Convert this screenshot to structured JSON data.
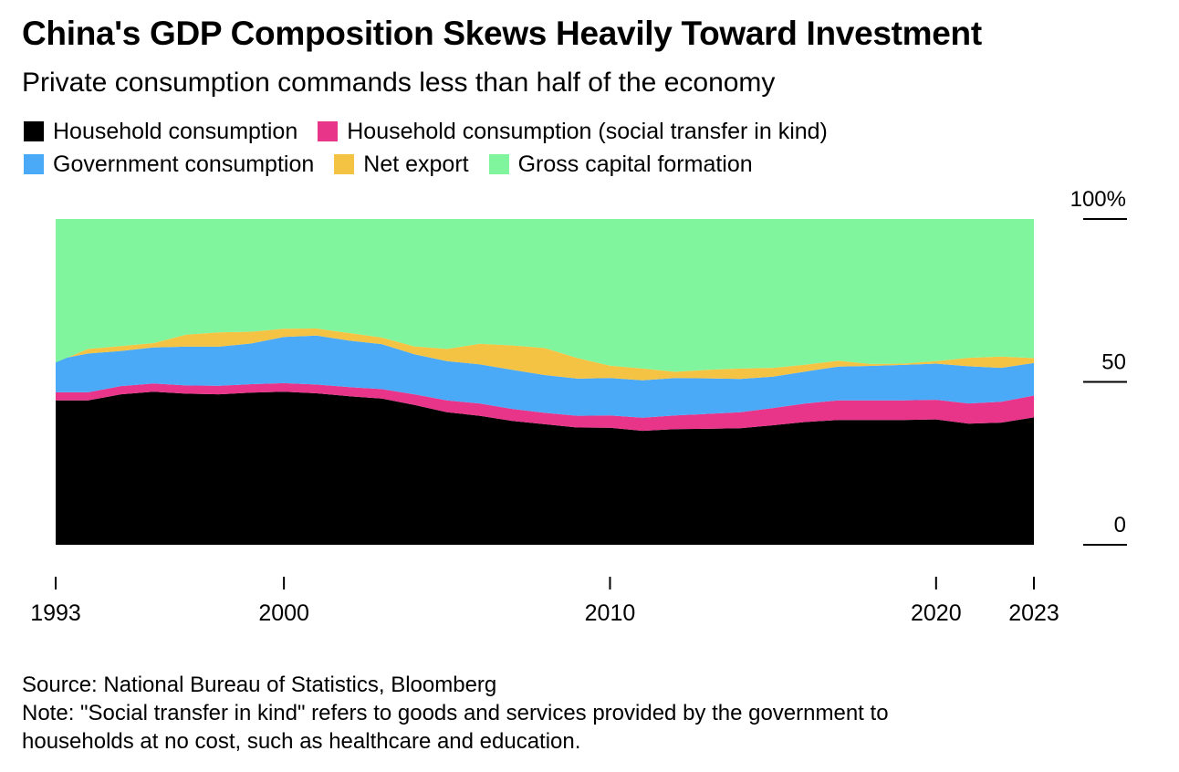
{
  "title": "China's GDP Composition Skews Heavily Toward Investment",
  "subtitle": "Private consumption commands less than half of the economy",
  "source": "Source: National Bureau of Statistics, Bloomberg",
  "note_line1": "Note: \"Social transfer in kind\" refers to goods and services provided by the government to",
  "note_line2": "households at no cost, such as healthcare and education.",
  "legend": [
    {
      "label": "Household consumption",
      "color": "#000000"
    },
    {
      "label": "Household consumption (social transfer in kind)",
      "color": "#e8358a"
    },
    {
      "label": "Government consumption",
      "color": "#4aaaf8"
    },
    {
      "label": "Net export",
      "color": "#f5c343"
    },
    {
      "label": "Gross capital formation",
      "color": "#80f59d"
    }
  ],
  "chart_data": {
    "type": "area",
    "stacked": true,
    "title": "China's GDP Composition Skews Heavily Toward Investment",
    "subtitle": "Private consumption commands less than half of the economy",
    "x": [
      1993,
      1994,
      1995,
      1996,
      1997,
      1998,
      1999,
      2000,
      2001,
      2002,
      2003,
      2004,
      2005,
      2006,
      2007,
      2008,
      2009,
      2010,
      2011,
      2012,
      2013,
      2014,
      2015,
      2016,
      2017,
      2018,
      2019,
      2020,
      2021,
      2022,
      2023
    ],
    "x_ticks": [
      1993,
      2000,
      2010,
      2020,
      2023
    ],
    "y_ticks": [
      {
        "value": 0,
        "label": "0"
      },
      {
        "value": 50,
        "label": "50"
      },
      {
        "value": 100,
        "label": "100%"
      }
    ],
    "ylim": [
      0,
      100
    ],
    "y_axis_side": "right",
    "legend_position": "top",
    "series": [
      {
        "name": "Household consumption",
        "color": "#000000",
        "values": [
          44.3,
          44.3,
          46.2,
          47.0,
          46.4,
          46.2,
          46.7,
          47.0,
          46.5,
          45.6,
          44.9,
          42.9,
          40.7,
          39.6,
          38.0,
          37.0,
          36.0,
          35.9,
          35.0,
          35.5,
          35.6,
          35.8,
          36.7,
          37.7,
          38.3,
          38.3,
          38.3,
          38.5,
          37.2,
          37.5,
          39.1
        ]
      },
      {
        "name": "Household consumption (social transfer in kind)",
        "color": "#e8358a",
        "values": [
          2.5,
          2.5,
          2.5,
          2.5,
          2.5,
          2.6,
          2.6,
          2.6,
          2.7,
          2.8,
          2.9,
          3.3,
          3.6,
          3.8,
          3.7,
          3.5,
          3.6,
          3.8,
          4.0,
          4.2,
          4.6,
          4.9,
          5.3,
          5.7,
          6.0,
          6.0,
          6.0,
          6.0,
          6.2,
          6.4,
          6.7
        ]
      },
      {
        "name": "Government consumption",
        "color": "#4aaaf8",
        "values": [
          10.0,
          11.9,
          10.8,
          11.1,
          11.9,
          12.0,
          12.5,
          14.2,
          15.0,
          14.3,
          13.8,
          12.3,
          12.1,
          12.0,
          12.0,
          11.6,
          11.4,
          11.5,
          11.5,
          11.5,
          10.9,
          10.2,
          9.6,
          9.8,
          10.4,
          10.6,
          10.9,
          11.1,
          11.4,
          10.4,
          10.0
        ]
      },
      {
        "name": "Net export",
        "color": "#f5c343",
        "values": [
          -0.8,
          1.4,
          1.5,
          1.3,
          3.7,
          4.4,
          3.6,
          2.5,
          2.2,
          2.3,
          2.0,
          2.4,
          3.7,
          6.3,
          7.5,
          8.3,
          6.3,
          3.8,
          3.6,
          1.9,
          2.6,
          3.2,
          2.7,
          2.1,
          1.8,
          0.6,
          0.4,
          0.8,
          2.6,
          3.5,
          1.5
        ]
      },
      {
        "name": "Gross capital formation",
        "color": "#80f59d",
        "values": [
          44.0,
          39.9,
          39.0,
          38.1,
          35.5,
          34.8,
          34.6,
          33.7,
          33.6,
          35.0,
          36.4,
          39.1,
          39.9,
          38.3,
          38.8,
          39.6,
          42.7,
          45.0,
          45.9,
          46.9,
          46.3,
          45.9,
          45.7,
          44.7,
          43.5,
          44.5,
          44.4,
          43.6,
          42.6,
          42.2,
          42.7
        ]
      }
    ]
  }
}
